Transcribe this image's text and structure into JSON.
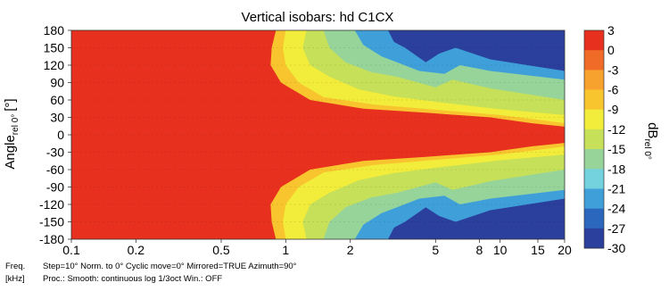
{
  "chart_data": {
    "type": "heatmap",
    "title": "Vertical isobars: hd C1CX",
    "ylabel_main": "Angle",
    "ylabel_sub": "rel 0°",
    "ylabel_unit": "[°]",
    "x_scale": "log",
    "xlim": [
      0.1,
      20
    ],
    "ylim": [
      -180,
      180
    ],
    "x_ticks": [
      0.1,
      0.2,
      0.5,
      1,
      2,
      5,
      8,
      10,
      15,
      20
    ],
    "x_tick_labels": [
      "0.1",
      "0.2",
      "0.5",
      "1",
      "2",
      "5",
      "8",
      "10",
      "15",
      "20"
    ],
    "y_ticks": [
      180,
      150,
      120,
      90,
      60,
      30,
      0,
      -30,
      -60,
      -90,
      -120,
      -150,
      -180
    ],
    "y_tick_labels": [
      "180",
      "150",
      "120",
      "90",
      "60",
      "30",
      "0",
      "-30",
      "-60",
      "-90",
      "-120",
      "-150",
      "-180"
    ],
    "xlabel_line1": "Freq.",
    "xlabel_line2": "[kHz]",
    "info_line1": "Step=10°   Norm. to 0°   Cyclic move=0°   Mirrored=TRUE   Azimuth=90°",
    "info_line2": "Proc.: Smooth: continuous log 1/3oct   Win.: OFF",
    "colorbar": {
      "label_main": "dB",
      "label_sub": "rel 0°",
      "levels": [
        3,
        0,
        -3,
        -6,
        -9,
        -12,
        -15,
        -18,
        -21,
        -24,
        -27,
        -30
      ],
      "level_labels": [
        "3",
        "0",
        "-3",
        "-6",
        "-9",
        "-12",
        "-15",
        "-18",
        "-21",
        "-24",
        "-27",
        "-30"
      ],
      "colors": [
        "#E8301F",
        "#F06A28",
        "#F7A12E",
        "#F8C52F",
        "#F2EC3A",
        "#C6E05A",
        "#97D49A",
        "#74D1DE",
        "#3FA0D9",
        "#2B67BD",
        "#2B3F9C",
        "#1F2A7E"
      ]
    },
    "contours": [
      {
        "level": -3,
        "coverage": 0.15,
        "points": [
          [
            0.9,
            180
          ],
          [
            0.86,
            150
          ],
          [
            0.85,
            120
          ],
          [
            0.95,
            90
          ],
          [
            1.3,
            60
          ],
          [
            2.3,
            45
          ],
          [
            4.5,
            38
          ],
          [
            9,
            30
          ],
          [
            14,
            20
          ],
          [
            20,
            14
          ]
        ]
      },
      {
        "level": -6,
        "coverage": 0.3,
        "points": [
          [
            1.0,
            180
          ],
          [
            0.97,
            150
          ],
          [
            1.0,
            120
          ],
          [
            1.15,
            90
          ],
          [
            1.5,
            65
          ],
          [
            2.6,
            52
          ],
          [
            5.5,
            42
          ],
          [
            10,
            34
          ],
          [
            15,
            26
          ],
          [
            20,
            20
          ]
        ]
      },
      {
        "level": -9,
        "coverage": 0.45,
        "points": [
          [
            1.25,
            180
          ],
          [
            1.2,
            150
          ],
          [
            1.3,
            120
          ],
          [
            1.6,
            100
          ],
          [
            2.2,
            78
          ],
          [
            3.2,
            66
          ],
          [
            5.5,
            55
          ],
          [
            10,
            44
          ],
          [
            20,
            34
          ]
        ]
      },
      {
        "level": -12,
        "coverage": 0.6,
        "points": [
          [
            1.5,
            180
          ],
          [
            1.6,
            150
          ],
          [
            1.9,
            125
          ],
          [
            2.5,
            108
          ],
          [
            3.3,
            100
          ],
          [
            5.0,
            82
          ],
          [
            6.0,
            95
          ],
          [
            9,
            80
          ],
          [
            20,
            60
          ]
        ]
      },
      {
        "level": -18,
        "coverage": 0.75,
        "points": [
          [
            2.1,
            180
          ],
          [
            2.3,
            155
          ],
          [
            2.8,
            135
          ],
          [
            3.3,
            125
          ],
          [
            4.2,
            110
          ],
          [
            5.5,
            105
          ],
          [
            6.5,
            120
          ],
          [
            9,
            110
          ],
          [
            20,
            95
          ]
        ]
      },
      {
        "level": -24,
        "coverage": 0.88,
        "points": [
          [
            3.0,
            180
          ],
          [
            3.2,
            160
          ],
          [
            3.6,
            150
          ],
          [
            4.5,
            125
          ],
          [
            5.2,
            140
          ],
          [
            6.2,
            150
          ],
          [
            9,
            130
          ],
          [
            20,
            110
          ]
        ]
      }
    ]
  }
}
